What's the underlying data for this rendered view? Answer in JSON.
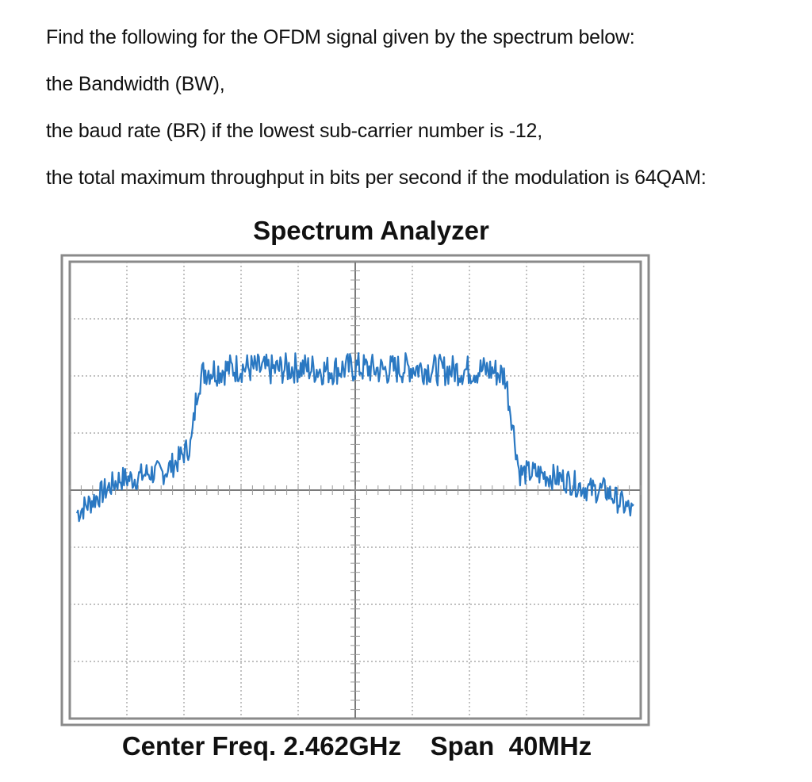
{
  "question": {
    "lines": [
      "Find the following for the OFDM signal given by the spectrum below:",
      "the Bandwidth (BW),",
      "the baud rate (BR) if the lowest sub-carrier number is -12,",
      "the total maximum throughput in bits per second if the modulation is 64QAM:"
    ]
  },
  "chart_data": {
    "type": "line",
    "title": "Spectrum Analyzer",
    "caption": "Center Freq. 2.462GHz    Span  40MHz",
    "center_freq": "2.462GHz",
    "span": "40MHz",
    "x_divisions": 10,
    "y_divisions": 8,
    "xlim": [
      -20,
      20
    ],
    "ylim": [
      0,
      8
    ],
    "grid": true,
    "trace_color": "#2a78c2",
    "grid_color": "#9a9a9a",
    "frame_color": "#8a8a8a",
    "series": [
      {
        "x": [
          -19.5,
          -18.5,
          -17.5,
          -16.5,
          -15.5,
          -14.5,
          -13.5,
          -12.5,
          -11.5,
          -11.0,
          -10.5,
          -9.5,
          -8.0,
          -6.0,
          -4.0,
          -2.0,
          0.0,
          2.0,
          4.0,
          6.0,
          8.0,
          9.5,
          10.5,
          11.0,
          11.5,
          12.5,
          13.5,
          14.5,
          15.5,
          16.5,
          17.5,
          18.5,
          19.5
        ],
        "y": [
          3.6,
          3.8,
          4.0,
          4.2,
          4.2,
          4.3,
          4.3,
          4.5,
          4.8,
          5.9,
          6.1,
          6.1,
          6.15,
          6.1,
          6.15,
          6.1,
          6.15,
          6.1,
          6.15,
          6.1,
          6.1,
          6.1,
          6.0,
          5.2,
          4.3,
          4.3,
          4.25,
          4.2,
          4.1,
          4.0,
          4.0,
          3.8,
          3.6
        ]
      }
    ]
  }
}
